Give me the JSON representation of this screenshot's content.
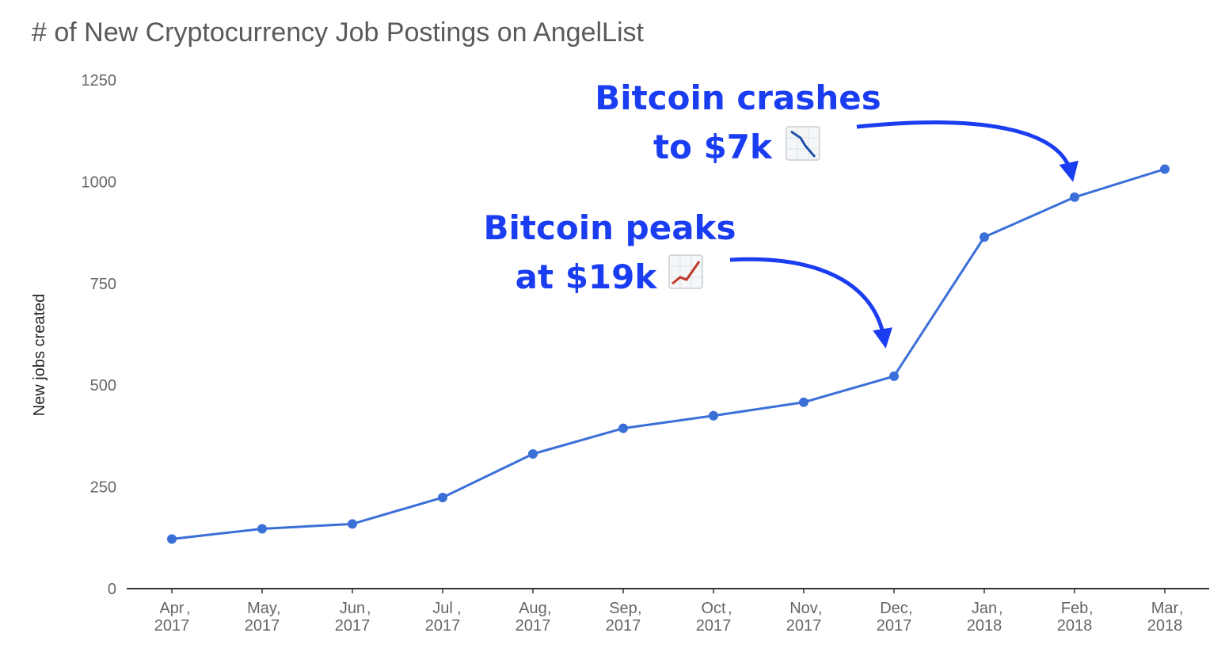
{
  "colors": {
    "series": "#3b6fd8",
    "annotation": "#1a3df2",
    "axis": "#333333",
    "title": "#5a5a5a"
  },
  "icons": {
    "peak": "chart-increasing-icon",
    "crash": "chart-decreasing-icon"
  },
  "chart_data": {
    "type": "line",
    "title": "# of New Cryptocurrency Job Postings on AngelList",
    "xlabel": "",
    "ylabel": "New jobs created",
    "ylim": [
      0,
      1250
    ],
    "yticks": [
      "0",
      "250",
      "500",
      "750",
      "1000",
      "1250"
    ],
    "categories": [
      {
        "month": "Apr",
        "year": "2017"
      },
      {
        "month": "May",
        "year": "2017"
      },
      {
        "month": "Jun",
        "year": "2017"
      },
      {
        "month": "Jul",
        "year": "2017"
      },
      {
        "month": "Aug",
        "year": "2017"
      },
      {
        "month": "Sep",
        "year": "2017"
      },
      {
        "month": "Oct",
        "year": "2017"
      },
      {
        "month": "Nov",
        "year": "2017"
      },
      {
        "month": "Dec",
        "year": "2017"
      },
      {
        "month": "Jan",
        "year": "2018"
      },
      {
        "month": "Feb",
        "year": "2018"
      },
      {
        "month": "Mar",
        "year": "2018"
      }
    ],
    "values": [
      122,
      147,
      159,
      224,
      331,
      394,
      425,
      458,
      522,
      864,
      962,
      1031
    ],
    "grid": false,
    "legend": "none",
    "annotations": [
      {
        "lines": [
          "Bitcoin peaks",
          "at $19k"
        ],
        "target": "Dec 2017",
        "icon": "chart-increasing-icon"
      },
      {
        "lines": [
          "Bitcoin crashes",
          "to $7k"
        ],
        "target": "Feb 2018",
        "icon": "chart-decreasing-icon"
      }
    ]
  }
}
